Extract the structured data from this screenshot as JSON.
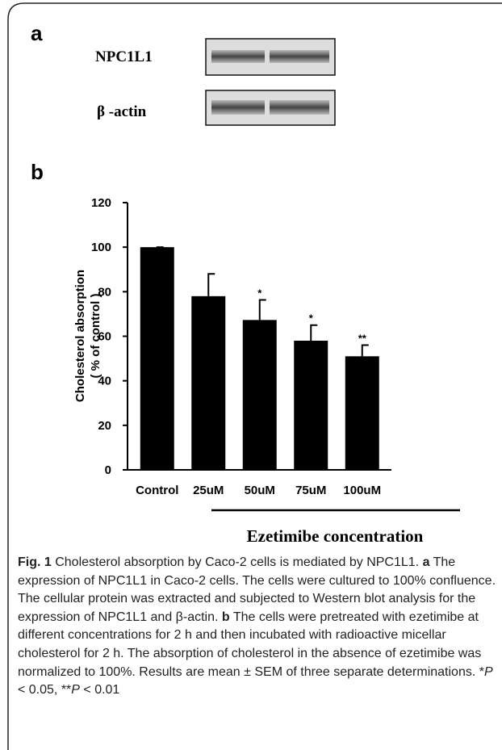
{
  "panel_a": {
    "label": "a",
    "blot_labels": [
      "NPC1L1",
      "β -actin"
    ]
  },
  "panel_b": {
    "label": "b"
  },
  "chart_data": {
    "type": "bar",
    "ylabel": [
      "Cholesterol absorption",
      "( % of control )"
    ],
    "xlabel": "Ezetimibe concentration",
    "categories": [
      "Control",
      "25uM",
      "50uM",
      "75uM",
      "100uM"
    ],
    "values": [
      100,
      78,
      67.3,
      58,
      51
    ],
    "errors": [
      0,
      10,
      9,
      7,
      5
    ],
    "significance": [
      null,
      null,
      "*",
      "*",
      "**"
    ],
    "color": "#000000",
    "ylim": [
      0,
      120
    ],
    "yticks": [
      0,
      20,
      40,
      60,
      80,
      100,
      120
    ]
  },
  "caption": {
    "runs": [
      "Fig. 1",
      " Cholesterol absorption by Caco-2 cells is mediated by NPC1L1. ",
      "a",
      " The expression of NPC1L1 in Caco-2 cells. The cells were cultured to 100% confluence. The cellular protein was extracted and subjected to Western blot analysis for the expression of NPC1L1 and β-actin. ",
      "b",
      " The cells were pretreated with ezetimibe at different concentrations for 2 h and then incubated with radioactive micellar cholesterol for 2 h. The absorption of cholesterol in the absence of ezetimibe was normalized to 100%. Results are mean ± SEM of three separate determinations. *",
      "P",
      " < 0.05, **",
      "P",
      " < 0.01"
    ]
  }
}
